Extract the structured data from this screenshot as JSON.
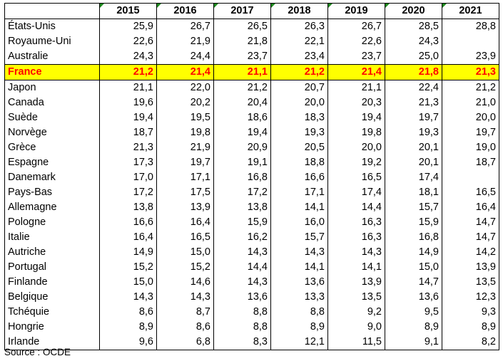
{
  "table": {
    "headers": [
      "",
      "2015",
      "2016",
      "2017",
      "2018",
      "2019",
      "2020",
      "2021"
    ],
    "rows": [
      {
        "country": "États-Unis",
        "values": [
          "25,9",
          "26,7",
          "26,5",
          "26,3",
          "26,7",
          "28,5",
          "28,8"
        ]
      },
      {
        "country": "Royaume-Uni",
        "values": [
          "22,6",
          "21,9",
          "21,8",
          "22,1",
          "22,6",
          "24,3",
          ""
        ]
      },
      {
        "country": "Australie",
        "values": [
          "24,3",
          "24,4",
          "23,7",
          "23,4",
          "23,7",
          "25,0",
          "23,9"
        ]
      },
      {
        "country": "France",
        "values": [
          "21,2",
          "21,4",
          "21,1",
          "21,2",
          "21,4",
          "21,8",
          "21,3"
        ],
        "highlight": true
      },
      {
        "country": "Japon",
        "values": [
          "21,1",
          "22,0",
          "21,2",
          "20,7",
          "21,1",
          "22,4",
          "21,2"
        ]
      },
      {
        "country": "Canada",
        "values": [
          "19,6",
          "20,2",
          "20,4",
          "20,0",
          "20,3",
          "21,3",
          "21,0"
        ]
      },
      {
        "country": "Suède",
        "values": [
          "19,4",
          "19,5",
          "18,6",
          "18,3",
          "19,4",
          "19,7",
          "20,0"
        ]
      },
      {
        "country": "Norvège",
        "values": [
          "18,7",
          "19,8",
          "19,4",
          "19,3",
          "19,8",
          "19,3",
          "19,7"
        ]
      },
      {
        "country": "Grèce",
        "values": [
          "21,3",
          "21,9",
          "20,9",
          "20,5",
          "20,0",
          "20,1",
          "19,0"
        ]
      },
      {
        "country": "Espagne",
        "values": [
          "17,3",
          "19,7",
          "19,1",
          "18,8",
          "19,2",
          "20,1",
          "18,7"
        ]
      },
      {
        "country": "Danemark",
        "values": [
          "17,0",
          "17,1",
          "16,8",
          "16,6",
          "16,5",
          "17,4",
          ""
        ]
      },
      {
        "country": "Pays-Bas",
        "values": [
          "17,2",
          "17,5",
          "17,2",
          "17,1",
          "17,4",
          "18,1",
          "16,5"
        ]
      },
      {
        "country": "Allemagne",
        "values": [
          "13,8",
          "13,9",
          "13,8",
          "14,1",
          "14,4",
          "15,7",
          "16,4"
        ]
      },
      {
        "country": "Pologne",
        "values": [
          "16,6",
          "16,4",
          "15,9",
          "16,0",
          "16,3",
          "15,9",
          "14,7"
        ]
      },
      {
        "country": "Italie",
        "values": [
          "16,4",
          "16,5",
          "16,2",
          "15,7",
          "16,3",
          "16,8",
          "14,7"
        ]
      },
      {
        "country": "Autriche",
        "values": [
          "14,9",
          "15,0",
          "14,3",
          "14,3",
          "14,3",
          "14,9",
          "14,2"
        ]
      },
      {
        "country": "Portugal",
        "values": [
          "15,2",
          "15,2",
          "14,4",
          "14,1",
          "14,1",
          "15,0",
          "13,9"
        ]
      },
      {
        "country": "Finlande",
        "values": [
          "15,0",
          "14,6",
          "14,3",
          "13,6",
          "13,9",
          "14,7",
          "13,5"
        ]
      },
      {
        "country": "Belgique",
        "values": [
          "14,3",
          "14,3",
          "13,6",
          "13,3",
          "13,5",
          "13,6",
          "12,3"
        ]
      },
      {
        "country": "Tchéquie",
        "values": [
          "8,6",
          "8,7",
          "8,8",
          "8,8",
          "9,2",
          "9,5",
          "9,3"
        ]
      },
      {
        "country": "Hongrie",
        "values": [
          "8,9",
          "8,6",
          "8,8",
          "8,9",
          "9,0",
          "8,9",
          "8,9"
        ]
      },
      {
        "country": "Irlande",
        "values": [
          "9,6",
          "6,8",
          "8,3",
          "12,1",
          "11,5",
          "9,1",
          "8,2"
        ]
      }
    ]
  },
  "source": "Source : OCDE",
  "colors": {
    "highlight_bg": "#ffff00",
    "highlight_text": "#ff0000",
    "cell_marker": "#1f8a1f"
  }
}
